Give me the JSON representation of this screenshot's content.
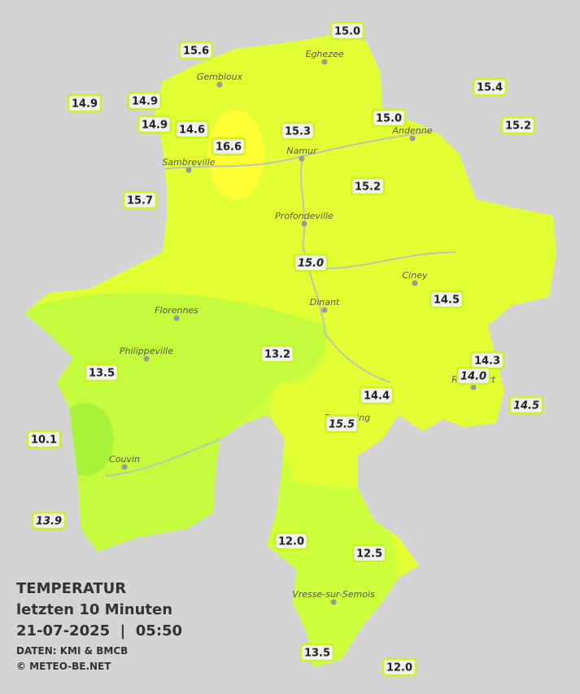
{
  "legend": {
    "title": "TEMPERATUR",
    "period": "letzten 10 Minuten",
    "datetime": "21-07-2025  |  05:50",
    "source": "DATEN: KMI & BMCB",
    "copyright": "© METEO-BE.NET"
  },
  "towns": [
    "Eghezee",
    "Gembloux",
    "Andenne",
    "Namur",
    "Sambreville",
    "Profondeville",
    "Ciney",
    "Dinant",
    "Florennes",
    "Philippeville",
    "Rochefort",
    "Beauraing",
    "Couvin",
    "Vresse-sur-Semois"
  ],
  "stations": [
    "15.0",
    "15.6",
    "14.9",
    "14.9",
    "15.4",
    "15.0",
    "15.2",
    "14.9",
    "14.6",
    "15.3",
    "16.6",
    "15.2",
    "15.7",
    "15.0",
    "14.5",
    "13.2",
    "14.3",
    "14.0",
    "13.5",
    "14.4",
    "14.5",
    "15.5",
    "10.1",
    "13.9",
    "12.0",
    "12.5",
    "13.5",
    "12.0"
  ]
}
